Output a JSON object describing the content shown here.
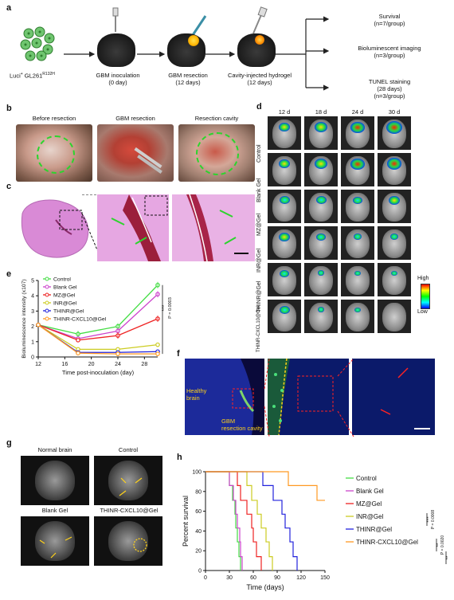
{
  "panel_labels": [
    "a",
    "b",
    "c",
    "d",
    "e",
    "f",
    "g",
    "h"
  ],
  "panel_a": {
    "cells_label_main": "Luci",
    "cells_label_sup1": "+",
    "cells_label_mid": " GL261",
    "cells_label_sup2": "R132H",
    "steps": [
      {
        "line1": "GBM inoculation",
        "line2": "(0 day)"
      },
      {
        "line1": "GBM resection",
        "line2": "(12 days)"
      },
      {
        "line1": "Cavity-injected hydrogel",
        "line2": "(12 days)"
      }
    ],
    "outcomes": [
      {
        "line1": "Survival",
        "line2": "(n=7/group)"
      },
      {
        "line1": "Bioluminescent imaging",
        "line2": "(n=3/group)"
      },
      {
        "line1": "TUNEL staining",
        "line2": "(28 days)",
        "line3": "(n=3/group)"
      }
    ]
  },
  "panel_b": {
    "titles": [
      "Before resection",
      "GBM resection",
      "Resection cavity"
    ]
  },
  "panel_d": {
    "days": [
      "12 d",
      "18 d",
      "24 d",
      "30 d"
    ],
    "groups": [
      "Control",
      "Blank Gel",
      "MZ@Gel",
      "INR@Gel",
      "THINR@Gel",
      "THINR-CXCL10@Gel"
    ],
    "scale_high": "High",
    "scale_low": "Low"
  },
  "panel_f": {
    "label_healthy_1": "Healthy",
    "label_healthy_2": "brain",
    "label_cavity_1": "GBM",
    "label_cavity_2": "resection cavity"
  },
  "panel_g": {
    "titles": [
      "Normal brain",
      "Control",
      "Blank Gel",
      "THINR-CXCL10@Gel"
    ]
  },
  "colors": {
    "Control": "#44dd44",
    "Blank Gel": "#cc44cc",
    "MZ@Gel": "#ee2222",
    "INR@Gel": "#cccc22",
    "THINR@Gel": "#2222dd",
    "THINR-CXCL10@Gel": "#ff9922"
  },
  "chart_data": [
    {
      "type": "line",
      "panel": "e",
      "xlabel": "Time post-inoculation (day)",
      "ylabel": "Bioluminescence intensity (x10",
      "ylabel_sup": "7",
      "ylabel_end": ")",
      "xlim": [
        12,
        30
      ],
      "ylim": [
        0,
        5
      ],
      "xticks": [
        12,
        16,
        20,
        24,
        28
      ],
      "yticks": [
        0,
        1,
        2,
        3,
        4,
        5
      ],
      "x": [
        12,
        18,
        24,
        30
      ],
      "series": [
        {
          "name": "Control",
          "values": [
            2.1,
            1.5,
            2.0,
            4.7
          ]
        },
        {
          "name": "Blank Gel",
          "values": [
            2.1,
            1.2,
            1.7,
            4.1
          ]
        },
        {
          "name": "MZ@Gel",
          "values": [
            2.1,
            1.1,
            1.4,
            2.5
          ]
        },
        {
          "name": "INR@Gel",
          "values": [
            2.1,
            0.5,
            0.5,
            0.8
          ]
        },
        {
          "name": "THINR@Gel",
          "values": [
            2.1,
            0.3,
            0.3,
            0.35
          ]
        },
        {
          "name": "THINR-CXCL10@Gel",
          "values": [
            2.1,
            0.25,
            0.2,
            0.2
          ]
        }
      ],
      "annotation_stars": "***",
      "annotation_p": "P = 0.0003"
    },
    {
      "type": "line",
      "panel": "h",
      "subtype": "kaplan-meier",
      "xlabel": "Time (days)",
      "ylabel": "Percent survival",
      "xlim": [
        0,
        150
      ],
      "ylim": [
        0,
        100
      ],
      "xticks": [
        0,
        30,
        60,
        90,
        120,
        150
      ],
      "yticks": [
        0,
        20,
        40,
        60,
        80,
        100
      ],
      "series": [
        {
          "name": "Control",
          "steps": [
            [
              0,
              100
            ],
            [
              30,
              100
            ],
            [
              30,
              86
            ],
            [
              34,
              86
            ],
            [
              34,
              71
            ],
            [
              37,
              71
            ],
            [
              37,
              57
            ],
            [
              38,
              57
            ],
            [
              38,
              43
            ],
            [
              40,
              43
            ],
            [
              40,
              29
            ],
            [
              42,
              29
            ],
            [
              42,
              14
            ],
            [
              44,
              14
            ],
            [
              44,
              0
            ]
          ]
        },
        {
          "name": "Blank Gel",
          "steps": [
            [
              0,
              100
            ],
            [
              30,
              100
            ],
            [
              30,
              86
            ],
            [
              35,
              86
            ],
            [
              35,
              71
            ],
            [
              38,
              71
            ],
            [
              38,
              57
            ],
            [
              40,
              57
            ],
            [
              40,
              43
            ],
            [
              43,
              43
            ],
            [
              43,
              29
            ],
            [
              44,
              29
            ],
            [
              44,
              14
            ],
            [
              46,
              14
            ],
            [
              46,
              0
            ]
          ]
        },
        {
          "name": "MZ@Gel",
          "steps": [
            [
              0,
              100
            ],
            [
              40,
              100
            ],
            [
              40,
              86
            ],
            [
              44,
              86
            ],
            [
              44,
              71
            ],
            [
              52,
              71
            ],
            [
              52,
              57
            ],
            [
              58,
              57
            ],
            [
              58,
              43
            ],
            [
              60,
              43
            ],
            [
              60,
              29
            ],
            [
              64,
              29
            ],
            [
              64,
              14
            ],
            [
              70,
              14
            ],
            [
              70,
              0
            ]
          ]
        },
        {
          "name": "INR@Gel",
          "steps": [
            [
              0,
              100
            ],
            [
              52,
              100
            ],
            [
              52,
              86
            ],
            [
              58,
              86
            ],
            [
              58,
              71
            ],
            [
              65,
              71
            ],
            [
              65,
              57
            ],
            [
              70,
              57
            ],
            [
              70,
              43
            ],
            [
              76,
              43
            ],
            [
              76,
              29
            ],
            [
              80,
              29
            ],
            [
              80,
              14
            ],
            [
              84,
              14
            ],
            [
              84,
              0
            ]
          ]
        },
        {
          "name": "THINR@Gel",
          "steps": [
            [
              0,
              100
            ],
            [
              72,
              100
            ],
            [
              72,
              86
            ],
            [
              85,
              86
            ],
            [
              85,
              71
            ],
            [
              96,
              71
            ],
            [
              96,
              57
            ],
            [
              100,
              57
            ],
            [
              100,
              43
            ],
            [
              106,
              43
            ],
            [
              106,
              29
            ],
            [
              110,
              29
            ],
            [
              110,
              14
            ],
            [
              115,
              14
            ],
            [
              115,
              0
            ]
          ]
        },
        {
          "name": "THINR-CXCL10@Gel",
          "steps": [
            [
              0,
              100
            ],
            [
              104,
              100
            ],
            [
              104,
              86
            ],
            [
              140,
              86
            ],
            [
              140,
              71
            ],
            [
              150,
              71
            ]
          ]
        }
      ],
      "annotations": [
        {
          "stars": "***",
          "p": "P = 0.0008"
        },
        {
          "stars": "**",
          "p": "P = 0.0020"
        },
        {
          "stars": "**",
          "p": "P = 0.0032"
        }
      ]
    }
  ]
}
